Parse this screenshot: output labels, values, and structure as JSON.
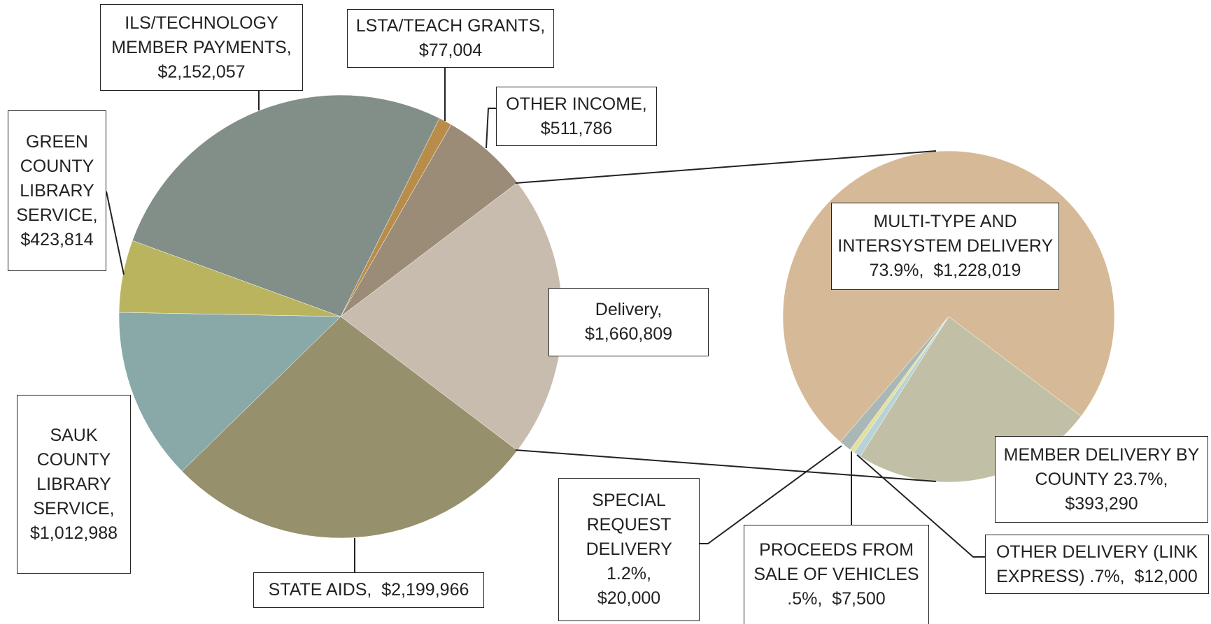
{
  "chart_data": [
    {
      "type": "pie",
      "categories": [
        "Delivery,",
        "STATE AIDS,",
        "SAUK COUNTY LIBRARY SERVICE,",
        "GREEN COUNTY LIBRARY SERVICE,",
        "ILS/TECHNOLOGY MEMBER PAYMENTS,",
        "LSTA/TEACH GRANTS,",
        "OTHER INCOME,"
      ],
      "values": [
        1660809,
        2199966,
        1012988,
        423814,
        2152057,
        77004,
        511786
      ],
      "value_labels": [
        "$1,660,809",
        "$2,199,966",
        "$1,012,988",
        "$423,814",
        "$2,152,057",
        "$77,004",
        "$511,786"
      ],
      "colors": [
        "#c8bcae",
        "#96916c",
        "#89a8a8",
        "#bab45e",
        "#828e88",
        "#b88d4a",
        "#9b8c78"
      ]
    },
    {
      "type": "pie",
      "categories": [
        "MEMBER DELIVERY BY COUNTY",
        "OTHER DELIVERY (LINK EXPRESS)",
        "PROCEEDS FROM SALE OF VEHICLES",
        "SPECIAL REQUEST DELIVERY",
        "MULTI-TYPE AND INTERSYSTEM DELIVERY"
      ],
      "values": [
        393290,
        12000,
        7500,
        20000,
        1228019
      ],
      "value_labels": [
        "$393,290",
        "$12,000",
        "$7,500",
        "$20,000",
        "$1,228,019"
      ],
      "percents": [
        23.7,
        0.7,
        0.5,
        1.2,
        73.9
      ],
      "percent_labels": [
        "23.7%,",
        ".7%,",
        ".5%,",
        "1.2%,",
        "73.9%,"
      ],
      "colors": [
        "#c1bfa5",
        "#b7d3d8",
        "#e5df9a",
        "#a9b8b6",
        "#d6b996"
      ]
    }
  ]
}
